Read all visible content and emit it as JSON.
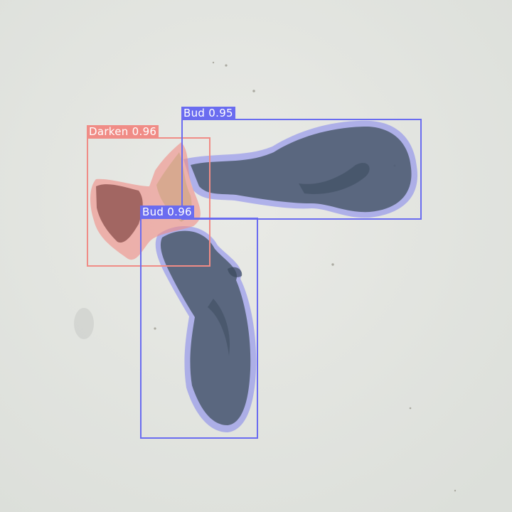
{
  "image": {
    "background": "#e4e6e1",
    "subject": "plant stem segment with two buds and a darkened tissue region",
    "overlay_type": "instance segmentation masks with bounding boxes"
  },
  "detections": [
    {
      "label": "Darken 0.96",
      "class": "Darken",
      "confidence": 0.96,
      "color": "#f08c86"
    },
    {
      "label": "Bud 0.95",
      "class": "Bud",
      "confidence": 0.95,
      "color": "#6a6cf0"
    },
    {
      "label": "Bud 0.96",
      "class": "Bud",
      "confidence": 0.96,
      "color": "#6a6cf0"
    }
  ]
}
